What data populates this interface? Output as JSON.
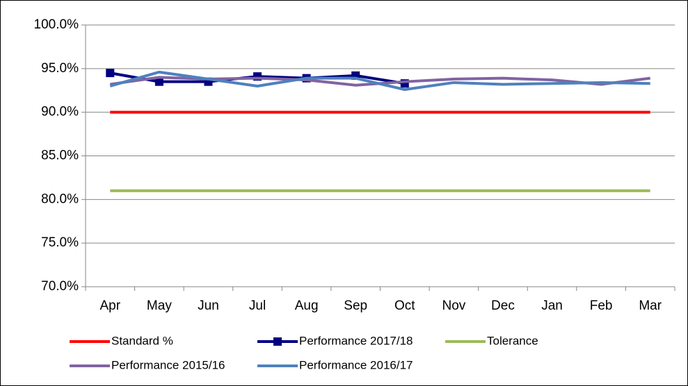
{
  "chart_data": {
    "type": "line",
    "categories": [
      "Apr",
      "May",
      "Jun",
      "Jul",
      "Aug",
      "Sep",
      "Oct",
      "Nov",
      "Dec",
      "Jan",
      "Feb",
      "Mar"
    ],
    "series": [
      {
        "name": "Standard %",
        "color": "#ff0000",
        "values": [
          90,
          90,
          90,
          90,
          90,
          90,
          90,
          90,
          90,
          90,
          90,
          90
        ]
      },
      {
        "name": "Performance 2017/18",
        "color": "#000080",
        "marker": "square",
        "values": [
          94.5,
          93.5,
          93.5,
          94.1,
          93.9,
          94.2,
          93.3,
          null,
          null,
          null,
          null,
          null
        ]
      },
      {
        "name": "Tolerance",
        "color": "#9bbb59",
        "values": [
          81,
          81,
          81,
          81,
          81,
          81,
          81,
          81,
          81,
          81,
          81,
          81
        ]
      },
      {
        "name": "Performance 2015/16",
        "color": "#8064a2",
        "values": [
          93.2,
          94.0,
          93.8,
          93.9,
          93.7,
          93.1,
          93.5,
          93.8,
          93.9,
          93.7,
          93.2,
          93.9
        ]
      },
      {
        "name": "Performance 2016/17",
        "color": "#4f81bd",
        "values": [
          93.0,
          94.6,
          93.8,
          93.0,
          93.9,
          93.9,
          92.6,
          93.4,
          93.2,
          93.3,
          93.4,
          93.3
        ]
      }
    ],
    "ylim": [
      70,
      100
    ],
    "yticks": [
      {
        "value": 70,
        "label": "70.0%"
      },
      {
        "value": 75,
        "label": "75.0%"
      },
      {
        "value": 80,
        "label": "80.0%"
      },
      {
        "value": 85,
        "label": "85.0%"
      },
      {
        "value": 90,
        "label": "90.0%"
      },
      {
        "value": 95,
        "label": "95.0%"
      },
      {
        "value": 100,
        "label": "100.0%"
      }
    ],
    "grid": true,
    "legend": "bottom"
  }
}
